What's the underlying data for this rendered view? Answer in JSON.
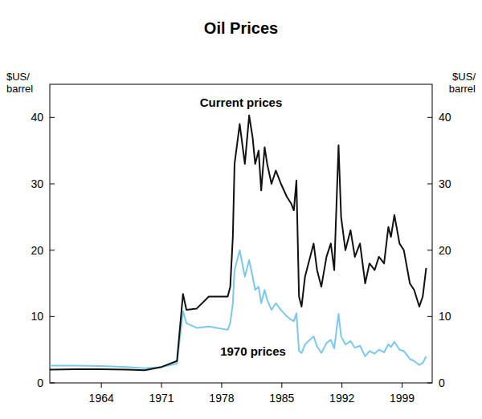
{
  "chart_data": {
    "type": "line",
    "title": "Oil Prices",
    "y_label": "$US/barrel",
    "y2_label": "$US/barrel",
    "x": [
      1958,
      1961,
      1964,
      1967,
      1969.05,
      1971,
      1972.8,
      1973.5,
      1973.9,
      1975.1,
      1976.5,
      1978.7,
      1979.0,
      1979.3,
      1979.5,
      1980.1,
      1980.4,
      1980.7,
      1981.2,
      1981.6,
      1981.9,
      1982.3,
      1982.6,
      1983.0,
      1983.3,
      1983.8,
      1984.3,
      1984.9,
      1985.6,
      1986.1,
      1986.4,
      1986.7,
      1987.0,
      1987.3,
      1987.7,
      1988.7,
      1989.1,
      1989.6,
      1990.2,
      1990.7,
      1991.1,
      1991.6,
      1991.9,
      1992.4,
      1993.0,
      1993.5,
      1994.1,
      1994.7,
      1995.2,
      1995.8,
      1996.3,
      1996.9,
      1997.4,
      1997.7,
      1998.1,
      1998.7,
      1999.2,
      1999.9,
      2000.4,
      2001.0,
      2001.4,
      2001.8
    ],
    "series": [
      {
        "name": "Current prices",
        "color": "#111111",
        "values": [
          2.0,
          2.05,
          2.05,
          2.0,
          1.9,
          2.4,
          3.3,
          13.4,
          11.0,
          11.2,
          13.0,
          13.0,
          14.5,
          22,
          33,
          39,
          36,
          33,
          40.3,
          37,
          33,
          35,
          29,
          35.5,
          33,
          30,
          32,
          30,
          28,
          27,
          26,
          30.5,
          13,
          11.5,
          16,
          21,
          17,
          14.5,
          19,
          21,
          17,
          35.8,
          25,
          20,
          23,
          19,
          21,
          15,
          18,
          17,
          19,
          18,
          23.5,
          22,
          25.3,
          21,
          20,
          15,
          14,
          11.5,
          13,
          17.3
        ]
      },
      {
        "name": "1970 prices",
        "color": "#7cc8ec",
        "values": [
          2.6,
          2.6,
          2.55,
          2.4,
          2.2,
          2.4,
          2.9,
          10.8,
          9.0,
          8.3,
          8.5,
          8.0,
          9,
          12,
          17,
          20,
          18,
          16,
          18.5,
          16,
          14,
          14.5,
          12,
          14,
          12.5,
          11,
          12,
          11,
          10,
          9.5,
          9.3,
          10.5,
          4.8,
          4.5,
          5.8,
          7,
          5.5,
          4.5,
          6,
          6.5,
          5.2,
          10.4,
          7,
          5.8,
          6.3,
          5.3,
          5.6,
          4,
          4.8,
          4.4,
          5,
          4.6,
          5.8,
          5.4,
          6.2,
          5,
          4.8,
          3.6,
          3.3,
          2.7,
          3,
          4
        ]
      }
    ],
    "xlim": [
      1958,
      2002.5
    ],
    "xticks": [
      1964,
      1971,
      1978,
      1985,
      1992,
      1999
    ],
    "ylim": [
      0,
      45
    ],
    "yticks": [
      0,
      10,
      20,
      30,
      40
    ],
    "y2lim": [
      0,
      45
    ],
    "y2ticks": [
      0,
      10,
      20,
      30,
      40
    ],
    "grid": false
  }
}
